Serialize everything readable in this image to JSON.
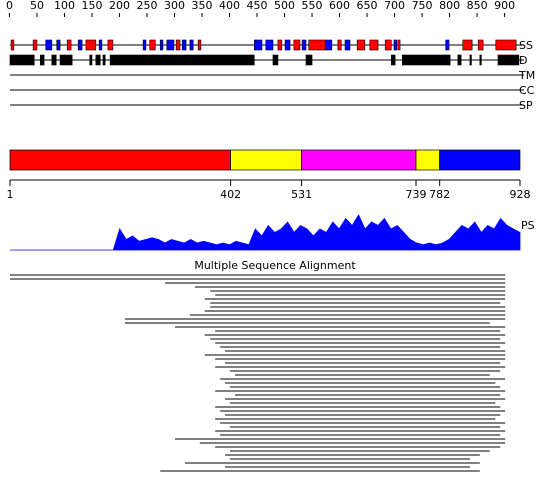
{
  "ruler": {
    "ticks": [
      0,
      50,
      100,
      150,
      200,
      250,
      300,
      350,
      400,
      450,
      500,
      550,
      600,
      650,
      700,
      750,
      800,
      850,
      900
    ]
  },
  "tracks": [
    {
      "label": "SS",
      "features": [
        {
          "color": "#ff0000",
          "segments": [
            [
              3,
              8
            ],
            [
              43,
              50
            ],
            [
              105,
              112
            ],
            [
              139,
              157
            ],
            [
              179,
              188
            ],
            [
              255,
              265
            ],
            [
              303,
              310
            ],
            [
              343,
              348
            ],
            [
              488,
              495
            ],
            [
              517,
              528
            ],
            [
              544,
              574
            ],
            [
              597,
              603
            ],
            [
              632,
              646
            ],
            [
              655,
              670
            ],
            [
              683,
              694
            ],
            [
              706,
              710
            ],
            [
              824,
              841
            ],
            [
              852,
              861
            ],
            [
              884,
              921
            ]
          ]
        },
        {
          "color": "#0000ff",
          "segments": [
            [
              66,
              77
            ],
            [
              86,
              92
            ],
            [
              125,
              132
            ],
            [
              163,
              168
            ],
            [
              243,
              248
            ],
            [
              274,
              279
            ],
            [
              286,
              299
            ],
            [
              314,
              321
            ],
            [
              328,
              334
            ],
            [
              445,
              459
            ],
            [
              466,
              479
            ],
            [
              501,
              510
            ],
            [
              532,
              539
            ],
            [
              575,
              586
            ],
            [
              610,
              619
            ],
            [
              699,
              704
            ],
            [
              793,
              799
            ]
          ]
        }
      ]
    },
    {
      "label": "D",
      "features": [
        {
          "color": "#000000",
          "segments": [
            [
              1,
              45
            ],
            [
              56,
              63
            ],
            [
              77,
              85
            ],
            [
              92,
              114
            ],
            [
              146,
              150
            ],
            [
              157,
              165
            ],
            [
              170,
              174
            ],
            [
              183,
              445
            ],
            [
              479,
              488
            ],
            [
              539,
              550
            ],
            [
              694,
              701
            ],
            [
              714,
              801
            ],
            [
              815,
              821
            ],
            [
              837,
              839
            ],
            [
              855,
              857
            ],
            [
              888,
              926
            ]
          ]
        }
      ]
    },
    {
      "label": "TM",
      "features": []
    },
    {
      "label": "CC",
      "features": []
    },
    {
      "label": "SP",
      "features": []
    }
  ],
  "domains": {
    "boundaries": [
      1,
      402,
      531,
      739,
      782,
      928
    ],
    "colors": [
      "#ff0000",
      "#ffff00",
      "#ff00ff",
      "#ffff00",
      "#0000ff"
    ]
  },
  "ps": {
    "label": "PS",
    "color": "#0000ff",
    "values": [
      0,
      0,
      0,
      0,
      0,
      0,
      0,
      0,
      0,
      0,
      0,
      0,
      0,
      0,
      0,
      0,
      0,
      0.6,
      0.3,
      0.4,
      0.25,
      0.3,
      0.35,
      0.3,
      0.2,
      0.3,
      0.25,
      0.2,
      0.3,
      0.2,
      0.25,
      0.2,
      0.15,
      0.2,
      0.15,
      0.25,
      0.2,
      0.15,
      0.6,
      0.4,
      0.7,
      0.5,
      0.6,
      0.8,
      0.5,
      0.7,
      0.6,
      0.4,
      0.6,
      0.5,
      0.8,
      0.6,
      0.9,
      0.7,
      1.0,
      0.6,
      0.8,
      0.7,
      0.9,
      0.6,
      0.7,
      0.5,
      0.3,
      0.2,
      0.15,
      0.2,
      0.15,
      0.2,
      0.3,
      0.5,
      0.7,
      0.6,
      0.8,
      0.5,
      0.7,
      0.6,
      0.9,
      0.7,
      0.6,
      0.5
    ]
  },
  "msa": {
    "title": "Multiple Sequence Alignment",
    "rows": [
      [
        1,
        901
      ],
      [
        1,
        901
      ],
      [
        283,
        901
      ],
      [
        337,
        901
      ],
      [
        365,
        901
      ],
      [
        374,
        901
      ],
      [
        355,
        901
      ],
      [
        365,
        892
      ],
      [
        365,
        901
      ],
      [
        355,
        901
      ],
      [
        328,
        901
      ],
      [
        210,
        901
      ],
      [
        210,
        873
      ],
      [
        301,
        901
      ],
      [
        374,
        892
      ],
      [
        355,
        901
      ],
      [
        365,
        892
      ],
      [
        374,
        901
      ],
      [
        383,
        892
      ],
      [
        392,
        901
      ],
      [
        355,
        901
      ],
      [
        374,
        901
      ],
      [
        392,
        892
      ],
      [
        374,
        901
      ],
      [
        401,
        892
      ],
      [
        410,
        873
      ],
      [
        383,
        901
      ],
      [
        392,
        883
      ],
      [
        401,
        892
      ],
      [
        374,
        901
      ],
      [
        410,
        892
      ],
      [
        392,
        901
      ],
      [
        401,
        883
      ],
      [
        374,
        892
      ],
      [
        383,
        901
      ],
      [
        392,
        892
      ],
      [
        374,
        883
      ],
      [
        383,
        901
      ],
      [
        401,
        892
      ],
      [
        374,
        901
      ],
      [
        383,
        892
      ],
      [
        301,
        901
      ],
      [
        346,
        901
      ],
      [
        374,
        892
      ],
      [
        401,
        873
      ],
      [
        392,
        855
      ],
      [
        401,
        837
      ],
      [
        319,
        855
      ],
      [
        392,
        837
      ],
      [
        274,
        855
      ]
    ]
  }
}
